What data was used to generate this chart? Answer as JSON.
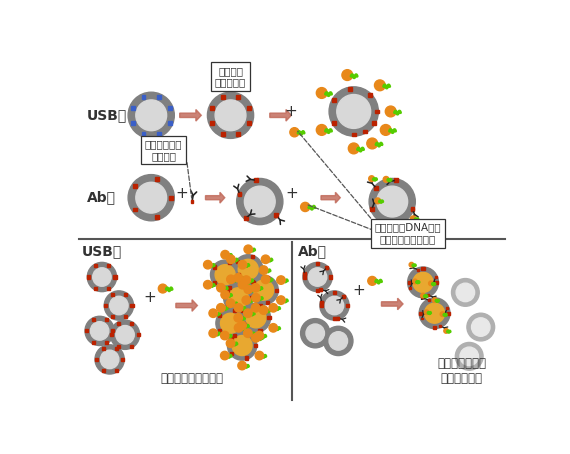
{
  "bg_color": "#ffffff",
  "blue_dot": "#3a5fc8",
  "red_dot": "#bb2200",
  "orange_color": "#e8881a",
  "green_color": "#55cc00",
  "arrow_color": "#c06858",
  "membrane_color": "#808080",
  "membrane_edge": "#555555",
  "inner_color": "#d8d8d8",
  "inner_labeled": "#e8a830",
  "inner_unlabeled_dim": "#e0e0e0",
  "text_color": "#333333",
  "label_usb": "USB法",
  "label_ab": "Ab法",
  "label_cell_biotin": "細胞表面\nビオチン化",
  "label_biotin_ab": "ビオチン結合\n一次抗体",
  "label_barcode": "バーコードDNA結合\nストレプトアビジン",
  "label_all_labeled": "すべての細胞が標識",
  "label_antigen_neg": "抗原陰性細胞は\n標識されない"
}
